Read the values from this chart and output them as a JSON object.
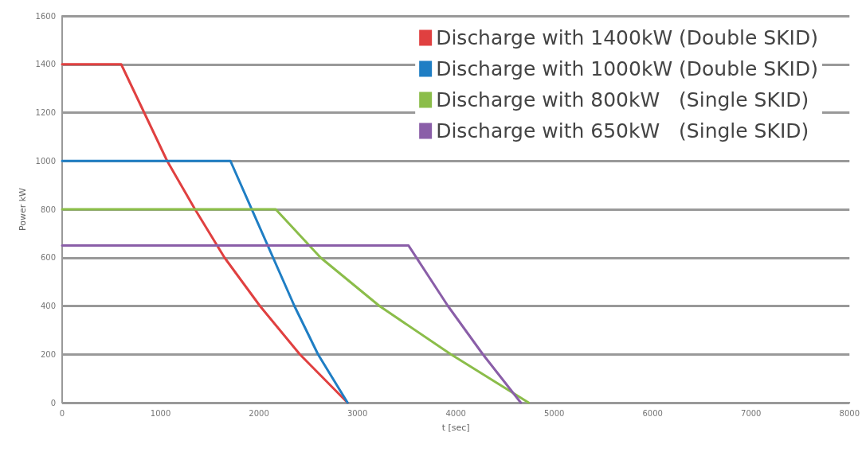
{
  "chart_data": {
    "type": "line",
    "xlabel": "t [sec]",
    "ylabel": "Power kW",
    "xlim": [
      0,
      8000
    ],
    "xticks": [
      0,
      1000,
      2000,
      3000,
      4000,
      5000,
      6000,
      7000,
      8000
    ],
    "ylim": [
      0,
      1600
    ],
    "yticks": [
      0,
      200,
      400,
      600,
      800,
      1000,
      1200,
      1400,
      1600
    ],
    "grid": "y",
    "legend": "top right",
    "marker": "none",
    "line_style": "solid",
    "series": [
      {
        "name": "Discharge with 1400kW (Double SKID)",
        "color": "#e04040",
        "x": [
          0,
          600,
          1067,
          1350,
          1650,
          2010,
          2415,
          2900
        ],
        "values": [
          1400,
          1400,
          1000,
          800,
          600,
          400,
          200,
          0
        ]
      },
      {
        "name": "Discharge with 1000kW (Double SKID)",
        "color": "#1f7ec4",
        "x": [
          0,
          1710,
          2360,
          2600,
          2900
        ],
        "values": [
          1000,
          1000,
          400,
          200,
          0
        ]
      },
      {
        "name": "Discharge with 800kW   (Single SKID)",
        "color": "#8bbd4a",
        "x": [
          0,
          2170,
          2626,
          3224,
          3950,
          4740
        ],
        "values": [
          800,
          800,
          600,
          400,
          200,
          0
        ]
      },
      {
        "name": "Discharge with 650kW   (Single SKID)",
        "color": "#8a5ea8",
        "x": [
          0,
          3520,
          3920,
          4275,
          4660
        ],
        "values": [
          650,
          650,
          400,
          200,
          0
        ]
      }
    ]
  }
}
